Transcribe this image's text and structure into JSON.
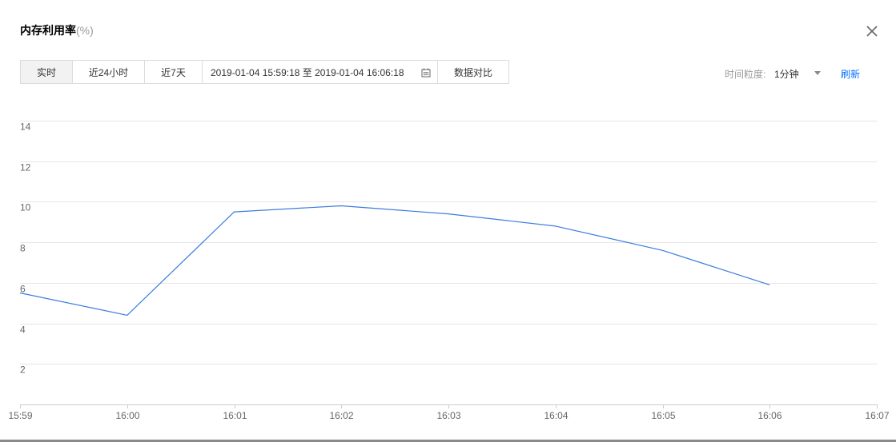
{
  "dialog": {
    "title": "内存利用率",
    "unit": "(%)",
    "close_icon": "close-icon"
  },
  "toolbar": {
    "ranges": [
      {
        "label": "实时",
        "selected": true
      },
      {
        "label": "近24小时",
        "selected": false
      },
      {
        "label": "近7天",
        "selected": false
      }
    ],
    "date_range": {
      "value": "2019-01-04 15:59:18 至 2019-01-04 16:06:18",
      "icon": "calendar-icon"
    },
    "compare_label": "数据对比",
    "granularity": {
      "label": "时间粒度:",
      "value": "1分钟",
      "icon": "caret-down-icon"
    },
    "refresh_label": "刷新"
  },
  "colors": {
    "link": "#006eff",
    "selected_bg": "#f2f2f2"
  },
  "chart_data": {
    "type": "line",
    "title": "",
    "xlabel": "",
    "ylabel": "",
    "x": [
      "15:59",
      "16:00",
      "16:01",
      "16:02",
      "16:03",
      "16:04",
      "16:05",
      "16:06"
    ],
    "x_ticks": [
      "15:59",
      "16:00",
      "16:01",
      "16:02",
      "16:03",
      "16:04",
      "16:05",
      "16:06",
      "16:07"
    ],
    "series": [
      {
        "values": [
          5.5,
          4.4,
          9.5,
          9.8,
          9.4,
          8.8,
          7.6,
          5.9
        ],
        "color": "#3b7ddd"
      }
    ],
    "y_ticks": [
      2,
      4,
      6,
      8,
      10,
      12,
      14
    ],
    "ylim": [
      0,
      14
    ],
    "grid": true,
    "legend": "none"
  }
}
